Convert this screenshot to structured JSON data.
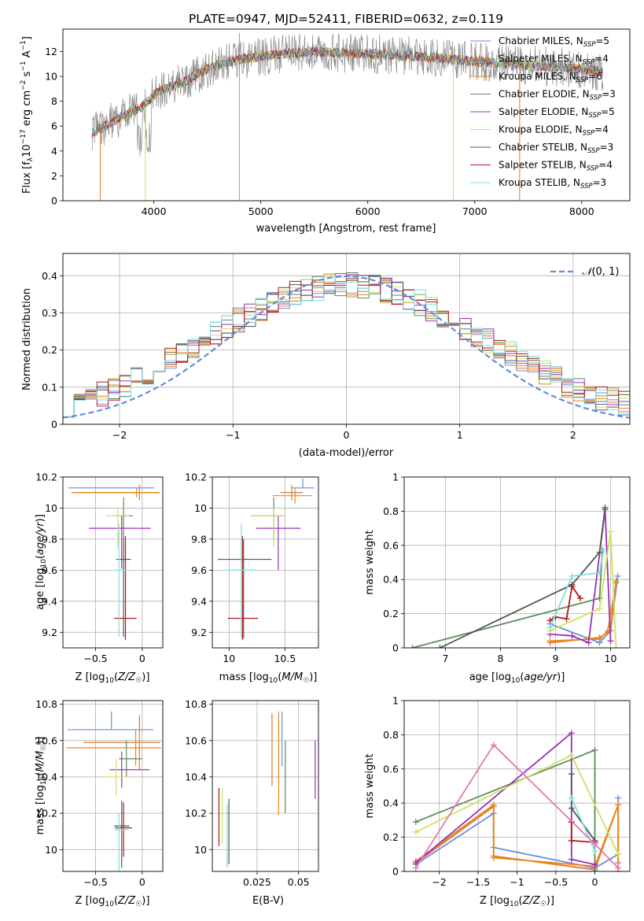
{
  "title": "PLATE=0947, MJD=52411, FIBERID=0632, z=0.119",
  "model_colors": [
    "#6a8fe0",
    "#e07a28",
    "#e8881a",
    "#5f8a5f",
    "#9a30b8",
    "#cfe060",
    "#555555",
    "#b01818",
    "#7ddede"
  ],
  "chart_data": [
    {
      "type": "line",
      "xlabel": "wavelength [Angstrom, rest frame]",
      "ylabel": "Flux [f_λ10^-17 erg cm^-2 s^-1 A^-1]",
      "xlim": [
        3150,
        8450
      ],
      "ylim": [
        0,
        13.8
      ],
      "xticks": [
        4000,
        5000,
        6000,
        7000,
        8000
      ],
      "yticks": [
        0,
        2,
        4,
        6,
        8,
        10,
        12
      ],
      "grid": false,
      "legend": "right",
      "series": [
        {
          "name": "Chabrier MILES, N_SSP=5",
          "color": "#6a8fe0"
        },
        {
          "name": "Salpeter MILES, N_SSP=4",
          "color": "#e07a28"
        },
        {
          "name": "Kroupa MILES, N_SSP=6",
          "color": "#e8881a"
        },
        {
          "name": "Chabrier ELODIE, N_SSP=3",
          "color": "#5f8a5f"
        },
        {
          "name": "Salpeter ELODIE, N_SSP=5",
          "color": "#9a30b8"
        },
        {
          "name": "Kroupa ELODIE, N_SSP=4",
          "color": "#cfe060"
        },
        {
          "name": "Chabrier STELIB, N_SSP=3",
          "color": "#555555"
        },
        {
          "name": "Salpeter STELIB, N_SSP=4",
          "color": "#b01818"
        },
        {
          "name": "Kroupa STELIB, N_SSP=3",
          "color": "#7ddede"
        }
      ],
      "continuum": {
        "x": [
          3420,
          3500,
          3600,
          3700,
          3800,
          3900,
          4000,
          4100,
          4200,
          4300,
          4400,
          4500,
          4700,
          5000,
          5200,
          5500,
          6000,
          6500,
          7000,
          7500,
          8000,
          8200
        ],
        "y": [
          5.5,
          5.8,
          6.3,
          6.8,
          7.2,
          7.6,
          8.5,
          9.0,
          9.3,
          9.6,
          10.2,
          10.6,
          11.2,
          11.6,
          11.8,
          12.0,
          11.8,
          11.6,
          11.2,
          10.9,
          10.6,
          10.4
        ]
      }
    },
    {
      "type": "line",
      "xlabel": "(data-model)/error",
      "ylabel": "Normed distribution",
      "xlim": [
        -2.5,
        2.5
      ],
      "ylim": [
        0,
        0.46
      ],
      "xticks": [
        -2,
        -1,
        0,
        1,
        2
      ],
      "yticks": [
        0.0,
        0.1,
        0.2,
        0.3,
        0.4
      ],
      "grid": true,
      "legend": "top-right",
      "reference": {
        "name": "N(0,1)",
        "label_prefix": "𝒩",
        "label_suffix": "(0, 1)",
        "color": "#5f8ddb"
      },
      "hist_bins": [
        -2.5,
        -2.4,
        -2.3,
        -2.2,
        -2.1,
        -2.0,
        -1.9,
        -1.8,
        -1.7,
        -1.6,
        -1.5,
        -1.4,
        -1.3,
        -1.2,
        -1.1,
        -1.0,
        -0.9,
        -0.8,
        -0.7,
        -0.6,
        -0.5,
        -0.4,
        -0.3,
        -0.2,
        -0.1,
        0.0,
        0.1,
        0.2,
        0.3,
        0.4,
        0.5,
        0.6,
        0.7,
        0.8,
        0.9,
        1.0,
        1.1,
        1.2,
        1.3,
        1.4,
        1.5,
        1.6,
        1.7,
        1.8,
        1.9,
        2.0,
        2.1,
        2.2,
        2.3,
        2.4,
        2.5
      ]
    },
    {
      "type": "scatter",
      "xlabel": "Z [log10(Z/Z☉)]",
      "ylabel": "age [log10(age/yr)]",
      "xlim": [
        -0.85,
        0.22
      ],
      "ylim": [
        9.1,
        10.2
      ],
      "xticks": [
        -0.5,
        0.0
      ],
      "yticks": [
        9.2,
        9.4,
        9.6,
        9.8,
        10.0,
        10.2
      ],
      "grid": true,
      "points": [
        {
          "x": -0.32,
          "y": 10.13,
          "xerr": [
            0.47,
            0.45
          ],
          "yerr": [
            0.0,
            0.0
          ]
        },
        {
          "x": -0.03,
          "y": 10.1,
          "xerr": [
            0.7,
            0.22
          ],
          "yerr": [
            0.05,
            0.05
          ]
        },
        {
          "x": -0.06,
          "y": 10.1,
          "xerr": [
            0.7,
            0.25
          ],
          "yerr": [
            0.03,
            0.03
          ]
        },
        {
          "x": -0.2,
          "y": 9.95,
          "xerr": [
            0.1,
            0.1
          ],
          "yerr": [
            0.15,
            0.12
          ]
        },
        {
          "x": -0.22,
          "y": 9.87,
          "xerr": [
            0.35,
            0.31
          ],
          "yerr": [
            0.26,
            0.08
          ]
        },
        {
          "x": -0.26,
          "y": 9.95,
          "xerr": [
            0.13,
            0.12
          ],
          "yerr": [
            0.2,
            0.05
          ]
        },
        {
          "x": -0.2,
          "y": 9.67,
          "xerr": [
            0.08,
            0.08
          ],
          "yerr": [
            0.5,
            0.13
          ]
        },
        {
          "x": -0.18,
          "y": 9.29,
          "xerr": [
            0.12,
            0.12
          ],
          "yerr": [
            0.14,
            0.53
          ]
        },
        {
          "x": -0.25,
          "y": 9.6,
          "xerr": [
            0.05,
            0.1
          ],
          "yerr": [
            0.43,
            0.3
          ]
        }
      ]
    },
    {
      "type": "scatter",
      "xlabel": "mass [log10(M/M☉)]",
      "ylabel": "",
      "xlim": [
        9.85,
        10.8
      ],
      "ylim": [
        9.1,
        10.2
      ],
      "xticks": [
        10.0,
        10.5
      ],
      "yticks": [
        9.2,
        9.4,
        9.6,
        9.8,
        10.0,
        10.2
      ],
      "grid": true,
      "points": [
        {
          "x": 10.66,
          "y": 10.13,
          "xerr": [
            0.1,
            0.1
          ],
          "yerr": [
            0.0,
            0.06
          ]
        },
        {
          "x": 10.56,
          "y": 10.1,
          "xerr": [
            0.1,
            0.1
          ],
          "yerr": [
            0.05,
            0.05
          ]
        },
        {
          "x": 10.59,
          "y": 10.08,
          "xerr": [
            0.2,
            0.15
          ],
          "yerr": [
            0.05,
            0.05
          ]
        },
        {
          "x": 10.4,
          "y": 9.95,
          "xerr": [
            0.2,
            0.1
          ],
          "yerr": [
            0.15,
            0.12
          ]
        },
        {
          "x": 10.44,
          "y": 9.87,
          "xerr": [
            0.2,
            0.2
          ],
          "yerr": [
            0.27,
            0.08
          ]
        },
        {
          "x": 10.4,
          "y": 9.95,
          "xerr": [
            0.2,
            0.1
          ],
          "yerr": [
            0.2,
            0.05
          ]
        },
        {
          "x": 10.13,
          "y": 9.67,
          "xerr": [
            0.23,
            0.25
          ],
          "yerr": [
            0.51,
            0.13
          ]
        },
        {
          "x": 10.12,
          "y": 9.29,
          "xerr": [
            0.13,
            0.14
          ],
          "yerr": [
            0.14,
            0.53
          ]
        },
        {
          "x": 10.11,
          "y": 9.6,
          "xerr": [
            0.15,
            0.15
          ],
          "yerr": [
            0.43,
            0.3
          ]
        }
      ]
    },
    {
      "type": "line",
      "xlabel": "age [log10(age/yr)]",
      "ylabel": "mass weight",
      "xlim": [
        6.25,
        10.35
      ],
      "ylim": [
        0,
        1.0
      ],
      "xticks": [
        7,
        8,
        9,
        10
      ],
      "yticks": [
        0.0,
        0.2,
        0.4,
        0.6,
        0.8,
        1.0
      ],
      "grid": true,
      "series": [
        {
          "x": [
            8.9,
            9.8,
            10.0,
            10.13
          ],
          "y": [
            0.14,
            0.03,
            0.1,
            0.42
          ]
        },
        {
          "x": [
            8.9,
            9.8,
            10.0,
            10.1
          ],
          "y": [
            0.03,
            0.06,
            0.1,
            0.39
          ]
        },
        {
          "x": [
            8.9,
            9.6,
            9.8,
            9.95,
            10.1
          ],
          "y": [
            0.04,
            0.05,
            0.05,
            0.1,
            0.38
          ]
        },
        {
          "x": [
            6.4,
            9.8,
            9.85
          ],
          "y": [
            0.0,
            0.29,
            0.57
          ]
        },
        {
          "x": [
            8.9,
            9.3,
            9.6,
            9.9,
            10.0
          ],
          "y": [
            0.08,
            0.07,
            0.03,
            0.81,
            0.04
          ]
        },
        {
          "x": [
            8.9,
            9.8,
            10.0,
            10.1
          ],
          "y": [
            0.1,
            0.23,
            0.68,
            0.0
          ]
        },
        {
          "x": [
            6.9,
            9.3,
            9.8,
            9.9
          ],
          "y": [
            0.0,
            0.37,
            0.56,
            0.82
          ]
        },
        {
          "x": [
            8.9,
            9.0,
            9.2,
            9.3,
            9.45
          ],
          "y": [
            0.16,
            0.18,
            0.17,
            0.36,
            0.29
          ]
        },
        {
          "x": [
            8.9,
            9.3,
            9.8,
            9.87
          ],
          "y": [
            0.12,
            0.42,
            0.44,
            0.57
          ]
        }
      ]
    },
    {
      "type": "scatter",
      "xlabel": "Z [log10(Z/Z☉)]",
      "ylabel": "mass [log10(M/M☉)]",
      "xlim": [
        -0.85,
        0.22
      ],
      "ylim": [
        9.88,
        10.82
      ],
      "xticks": [
        -0.5,
        0.0
      ],
      "yticks": [
        10.0,
        10.2,
        10.4,
        10.6,
        10.8
      ],
      "grid": true,
      "points": [
        {
          "x": -0.33,
          "y": 10.66,
          "xerr": [
            0.47,
            0.45
          ],
          "yerr": [
            0.0,
            0.1
          ]
        },
        {
          "x": -0.03,
          "y": 10.59,
          "xerr": [
            0.6,
            0.22
          ],
          "yerr": [
            0.15,
            0.15
          ]
        },
        {
          "x": -0.07,
          "y": 10.56,
          "xerr": [
            0.74,
            0.27
          ],
          "yerr": [
            0.1,
            0.1
          ]
        },
        {
          "x": -0.17,
          "y": 10.5,
          "xerr": [
            0.08,
            0.17
          ],
          "yerr": [
            0.1,
            0.1
          ]
        },
        {
          "x": -0.22,
          "y": 10.44,
          "xerr": [
            0.13,
            0.3
          ],
          "yerr": [
            0.1,
            0.1
          ]
        },
        {
          "x": -0.28,
          "y": 10.4,
          "xerr": [
            0.12,
            0.14
          ],
          "yerr": [
            0.1,
            0.1
          ]
        },
        {
          "x": -0.22,
          "y": 10.13,
          "xerr": [
            0.08,
            0.08
          ],
          "yerr": [
            0.23,
            0.14
          ]
        },
        {
          "x": -0.2,
          "y": 10.12,
          "xerr": [
            0.09,
            0.09
          ],
          "yerr": [
            0.16,
            0.14
          ]
        },
        {
          "x": -0.25,
          "y": 10.11,
          "xerr": [
            0.05,
            0.1
          ],
          "yerr": [
            0.23,
            0.09
          ]
        }
      ]
    },
    {
      "type": "scatter",
      "xlabel": "E(B-V)",
      "ylabel": "",
      "xlim": [
        -0.002,
        0.062
      ],
      "ylim": [
        9.88,
        10.82
      ],
      "xticks": [
        0.025,
        0.05
      ],
      "yticks": [
        10.0,
        10.2,
        10.4,
        10.6,
        10.8
      ],
      "grid": true,
      "points": [
        {
          "x": 0.04,
          "y": 10.56,
          "yerr": [
            0.1,
            0.2
          ]
        },
        {
          "x": 0.034,
          "y": 10.55,
          "yerr": [
            0.2,
            0.2
          ]
        },
        {
          "x": 0.038,
          "y": 10.46,
          "yerr": [
            0.27,
            0.3
          ]
        },
        {
          "x": 0.042,
          "y": 10.4,
          "yerr": [
            0.2,
            0.2
          ]
        },
        {
          "x": 0.06,
          "y": 10.44,
          "yerr": [
            0.16,
            0.16
          ]
        },
        {
          "x": 0.004,
          "y": 10.18,
          "yerr": [
            0.15,
            0.16
          ]
        },
        {
          "x": 0.008,
          "y": 10.12,
          "yerr": [
            0.2,
            0.16
          ]
        },
        {
          "x": 0.002,
          "y": 10.19,
          "yerr": [
            0.17,
            0.15
          ]
        },
        {
          "x": 0.007,
          "y": 10.05,
          "yerr": [
            0.15,
            0.2
          ]
        }
      ]
    },
    {
      "type": "line",
      "xlabel": "Z [log10(Z/Z☉)]",
      "ylabel": "mass weight",
      "xlim": [
        -2.45,
        0.45
      ],
      "ylim": [
        0,
        1.0
      ],
      "xticks": [
        -2.0,
        -1.5,
        -1.0,
        -0.5,
        0.0
      ],
      "yticks": [
        0.0,
        0.2,
        0.4,
        0.6,
        0.8,
        1.0
      ],
      "grid": true,
      "series": [
        {
          "x": [
            -2.3,
            -1.3,
            -1.3,
            0.0,
            0.3,
            0.3,
            0.3
          ],
          "y": [
            0.04,
            0.34,
            0.14,
            0.02,
            0.1,
            0.43,
            0.05
          ]
        },
        {
          "x": [
            -2.3,
            -1.3,
            -1.3,
            0.0,
            0.3,
            0.3
          ],
          "y": [
            0.05,
            0.38,
            0.09,
            0.01,
            0.39,
            0.0
          ]
        },
        {
          "x": [
            -2.3,
            -1.3,
            -1.3,
            0.0,
            0.3,
            0.3
          ],
          "y": [
            0.06,
            0.39,
            0.08,
            0.03,
            0.39,
            0.0
          ]
        },
        {
          "x": [
            -2.3,
            0.0,
            0.0
          ],
          "y": [
            0.29,
            0.71,
            0.0
          ]
        },
        {
          "x": [
            -2.3,
            -0.3,
            -0.3,
            0.0
          ],
          "y": [
            0.05,
            0.81,
            0.07,
            0.04
          ]
        },
        {
          "x": [
            -2.3,
            -0.3,
            0.3
          ],
          "y": [
            0.23,
            0.68,
            0.1
          ]
        },
        {
          "x": [
            -0.3,
            -0.3,
            0.0
          ],
          "y": [
            0.57,
            0.37,
            0.18
          ]
        },
        {
          "x": [
            -0.3,
            -0.3,
            0.0
          ],
          "y": [
            0.29,
            0.18,
            0.17
          ]
        },
        {
          "x": [
            -0.3,
            0.0
          ],
          "y": [
            0.43,
            0.12
          ]
        },
        {
          "x": [
            -2.3,
            -1.3,
            0.0,
            0.3
          ],
          "y": [
            0.02,
            0.74,
            0.16,
            0.02
          ]
        }
      ]
    }
  ]
}
